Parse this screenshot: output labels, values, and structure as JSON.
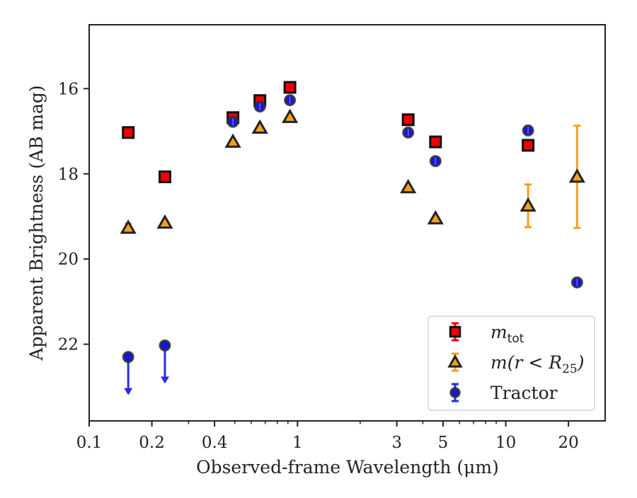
{
  "chart_data": {
    "type": "scatter",
    "xlabel": "Observed-frame Wavelength (μm)",
    "ylabel": "Apparent Brightness (AB mag)",
    "xscale": "log",
    "xlim": [
      0.1,
      30
    ],
    "ylim": [
      23.8,
      14.5
    ],
    "y_inverted": true,
    "grid": false,
    "legend_position": "lower-right",
    "x_ticks": [
      0.1,
      0.2,
      0.4,
      1,
      3,
      5,
      10,
      20
    ],
    "x_tick_labels": [
      "0.1",
      "0.2",
      "0.4",
      "1",
      "3",
      "5",
      "10",
      "20"
    ],
    "y_ticks": [
      16,
      18,
      20,
      22
    ],
    "y_tick_labels": [
      "16",
      "18",
      "20",
      "22"
    ],
    "series": [
      {
        "name": "m_tot",
        "legend_label_main": "m",
        "legend_label_sub": "tot",
        "marker": "square",
        "face_color": "#ee0000",
        "edge_color": "#111111",
        "errorbar_color": "#ee0000",
        "points": [
          {
            "x": 0.154,
            "y": 17.03,
            "err": 0
          },
          {
            "x": 0.231,
            "y": 18.07,
            "err": 0
          },
          {
            "x": 0.49,
            "y": 16.68,
            "err": 0
          },
          {
            "x": 0.66,
            "y": 16.28,
            "err": 0
          },
          {
            "x": 0.92,
            "y": 15.97,
            "err": 0
          },
          {
            "x": 3.4,
            "y": 16.73,
            "err": 0
          },
          {
            "x": 4.6,
            "y": 17.25,
            "err": 0
          },
          {
            "x": 12.8,
            "y": 17.33,
            "err": 0
          }
        ]
      },
      {
        "name": "m(r < R25)",
        "legend_label_main": "m(r < R",
        "legend_label_sub": "25",
        "legend_label_tail": ")",
        "marker": "triangle",
        "face_color": "#f5a01a",
        "edge_color": "#222222",
        "errorbar_color": "#f5a01a",
        "points": [
          {
            "x": 0.154,
            "y": 19.27,
            "err": 0.1
          },
          {
            "x": 0.231,
            "y": 19.15,
            "err": 0
          },
          {
            "x": 0.49,
            "y": 17.25,
            "err": 0
          },
          {
            "x": 0.66,
            "y": 16.92,
            "err": 0
          },
          {
            "x": 0.92,
            "y": 16.67,
            "err": 0
          },
          {
            "x": 3.4,
            "y": 18.32,
            "err": 0
          },
          {
            "x": 4.6,
            "y": 19.05,
            "err": 0
          },
          {
            "x": 12.8,
            "y": 18.75,
            "err": 0.5
          },
          {
            "x": 22.0,
            "y": 18.07,
            "err": 1.2
          }
        ]
      },
      {
        "name": "Tractor",
        "legend_label_main": "Tractor",
        "marker": "circle",
        "face_color": "#1515e0",
        "edge_color": "#333333",
        "errorbar_color": "#2a2ae8",
        "points": [
          {
            "x": 0.154,
            "y": 22.3,
            "err": 0,
            "upper_limit": true
          },
          {
            "x": 0.231,
            "y": 22.03,
            "err": 0,
            "upper_limit": true
          },
          {
            "x": 0.49,
            "y": 16.78,
            "err": 0.05
          },
          {
            "x": 0.66,
            "y": 16.42,
            "err": 0.05
          },
          {
            "x": 0.92,
            "y": 16.27,
            "err": 0.05
          },
          {
            "x": 3.4,
            "y": 17.03,
            "err": 0.05
          },
          {
            "x": 4.6,
            "y": 17.7,
            "err": 0.05
          },
          {
            "x": 12.8,
            "y": 16.98,
            "err": 0.05
          },
          {
            "x": 22.0,
            "y": 20.55,
            "err": 0.05
          }
        ]
      }
    ]
  }
}
